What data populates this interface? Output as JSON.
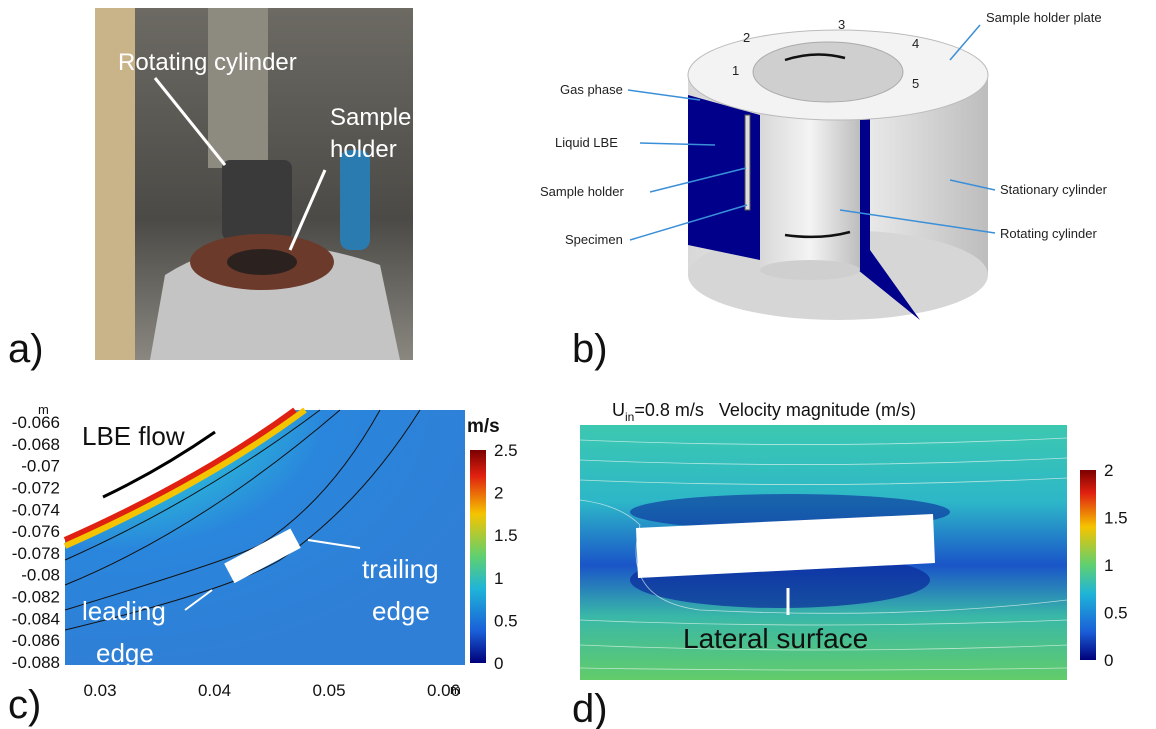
{
  "panel_a": {
    "label": "a)",
    "rotating_cylinder": "Rotating cylinder",
    "sample_holder": [
      "Sample",
      "holder"
    ]
  },
  "panel_b": {
    "label": "b)",
    "sample_holder_plate": "Sample holder plate",
    "gas_phase": "Gas phase",
    "liquid_lbe": "Liquid LBE",
    "sample_holder": "Sample holder",
    "specimen": "Specimen",
    "stationary_cylinder": "Stationary cylinder",
    "rotating_cylinder": "Rotating cylinder",
    "positions": [
      "1",
      "2",
      "3",
      "4",
      "5"
    ]
  },
  "panel_c": {
    "label": "c)",
    "y_unit": "m",
    "x_unit": "m",
    "y_ticks": [
      "-0.066",
      "-0.068",
      "-0.07",
      "-0.072",
      "-0.074",
      "-0.076",
      "-0.078",
      "-0.08",
      "-0.082",
      "-0.084",
      "-0.086",
      "-0.088"
    ],
    "x_ticks": [
      "0.03",
      "0.04",
      "0.05",
      "0.06"
    ],
    "colorbar_unit": "m/s",
    "colorbar_ticks": [
      "2.5",
      "2",
      "1.5",
      "1",
      "0.5",
      "0"
    ],
    "flow_label": "LBE flow",
    "trailing_edge": [
      "trailing",
      "edge"
    ],
    "leading_edge": [
      "leading",
      "edge"
    ]
  },
  "panel_d": {
    "label": "d)",
    "title_symbol": "U",
    "title_subscript": "in",
    "title_rest": "=0.8 m/s   Velocity magnitude (m/s)",
    "colorbar_ticks": [
      "2",
      "1.5",
      "1",
      "0.5",
      "0"
    ],
    "surface_label": "Lateral surface"
  }
}
